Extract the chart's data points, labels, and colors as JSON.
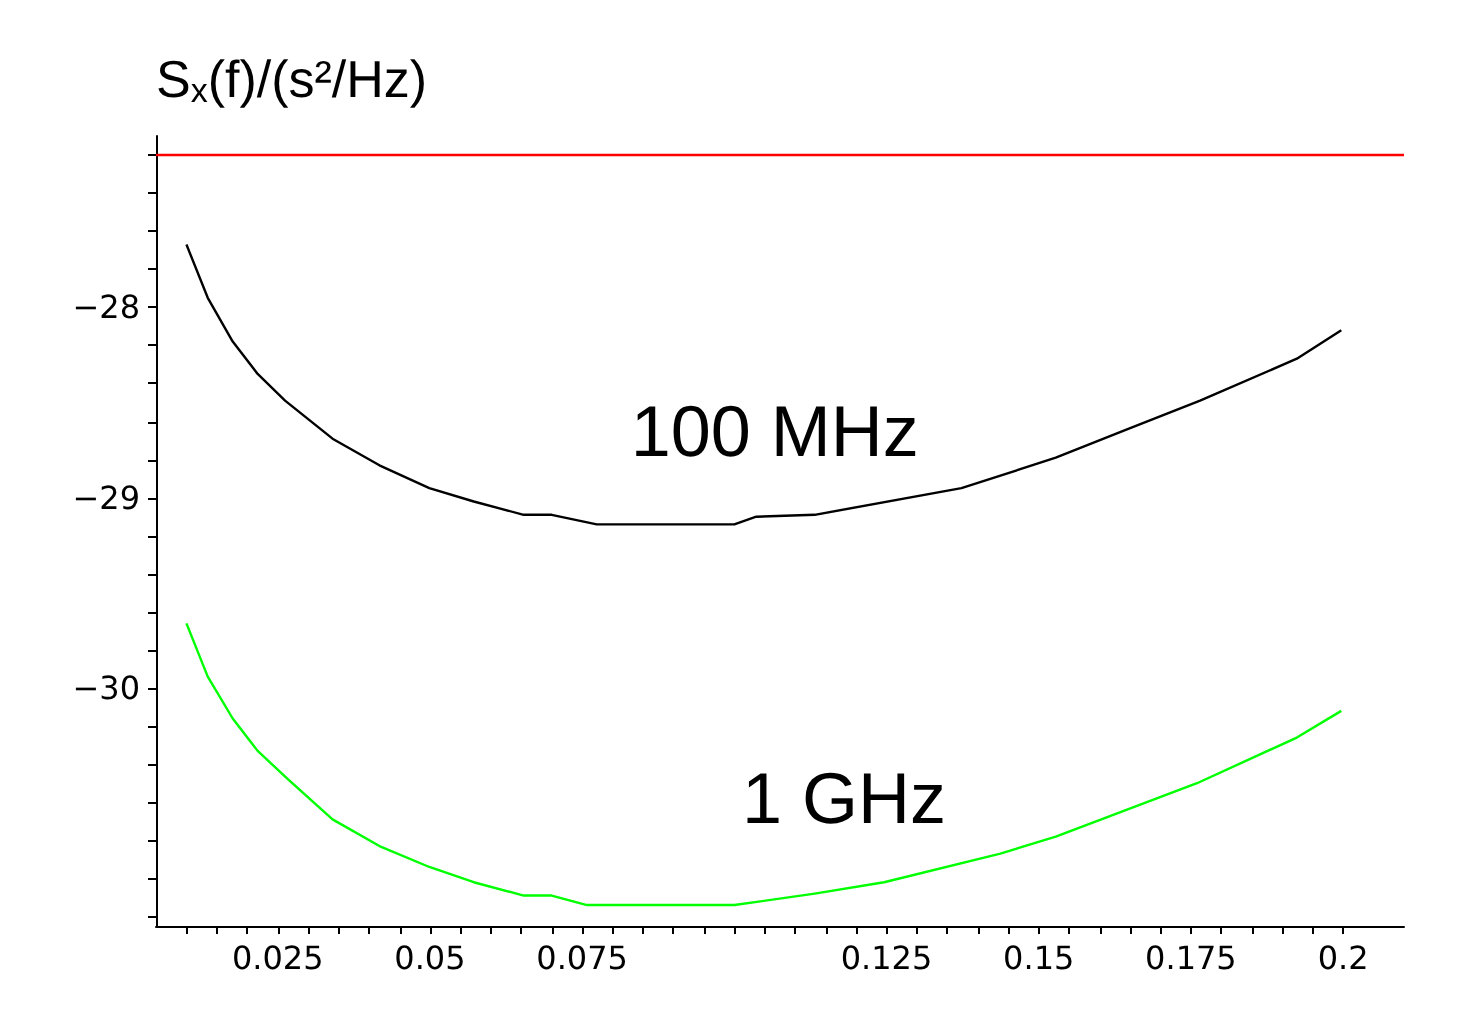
{
  "chart_data": {
    "type": "line",
    "ylabel": "S$_{x}$(f)/(s²/Hz)",
    "xlim": [
      0.005,
      0.21
    ],
    "ylim": [
      -31.25,
      -27.1
    ],
    "xticks": [
      {
        "value": 0.01,
        "label": null
      },
      {
        "value": 0.015,
        "label": null
      },
      {
        "value": 0.02,
        "label": null
      },
      0.025,
      {
        "value": 0.03,
        "label": null
      },
      {
        "value": 0.035,
        "label": null
      },
      {
        "value": 0.04,
        "label": null
      },
      {
        "value": 0.045,
        "label": null
      },
      0.05,
      {
        "value": 0.055,
        "label": null
      },
      {
        "value": 0.06,
        "label": null
      },
      {
        "value": 0.065,
        "label": null
      },
      {
        "value": 0.07,
        "label": null
      },
      0.075,
      {
        "value": 0.08,
        "label": null
      },
      {
        "value": 0.085,
        "label": null
      },
      {
        "value": 0.09,
        "label": null
      },
      {
        "value": 0.095,
        "label": null
      },
      {
        "value": 0.1,
        "label": null
      },
      {
        "value": 0.105,
        "label": null
      },
      {
        "value": 0.11,
        "label": null
      },
      {
        "value": 0.115,
        "label": null
      },
      {
        "value": 0.12,
        "label": null
      },
      0.125,
      {
        "value": 0.13,
        "label": null
      },
      {
        "value": 0.135,
        "label": null
      },
      {
        "value": 0.14,
        "label": null
      },
      {
        "value": 0.145,
        "label": null
      },
      0.15,
      {
        "value": 0.155,
        "label": null
      },
      {
        "value": 0.16,
        "label": null
      },
      {
        "value": 0.165,
        "label": null
      },
      {
        "value": 0.17,
        "label": null
      },
      0.175,
      {
        "value": 0.18,
        "label": null
      },
      {
        "value": 0.185,
        "label": null
      },
      {
        "value": 0.19,
        "label": null
      },
      {
        "value": 0.195,
        "label": null
      },
      0.2
    ],
    "yticks": [
      {
        "value": -31.2,
        "label": null
      },
      {
        "value": -31,
        "label": null
      },
      {
        "value": -30.8,
        "label": null
      },
      {
        "value": -30.6,
        "label": null
      },
      {
        "value": -30.4,
        "label": null
      },
      {
        "value": -30.2,
        "label": null
      },
      -30,
      {
        "value": -29.8,
        "label": null
      },
      {
        "value": -29.6,
        "label": null
      },
      {
        "value": -29.4,
        "label": null
      },
      {
        "value": -29.2,
        "label": null
      },
      -29,
      {
        "value": -28.8,
        "label": null
      },
      {
        "value": -28.6,
        "label": null
      },
      {
        "value": -28.4,
        "label": null
      },
      {
        "value": -28.2,
        "label": null
      },
      -28,
      {
        "value": -27.8,
        "label": null
      },
      {
        "value": -27.6,
        "label": null
      },
      {
        "value": -27.4,
        "label": null
      },
      {
        "value": -27.2,
        "label": null
      }
    ],
    "grid": false,
    "marker": "none",
    "line_style": "solid",
    "series": [
      {
        "name": "100 MHz",
        "color": "#000000",
        "x": [
          0.01,
          0.0135,
          0.0176,
          0.0217,
          0.0262,
          0.034,
          0.0417,
          0.0499,
          0.0572,
          0.0654,
          0.07,
          0.0774,
          0.1,
          0.1036,
          0.1132,
          0.1373,
          0.1528,
          0.1646,
          0.1765,
          0.1924,
          0.1997
        ],
        "values": [
          -27.67,
          -27.95,
          -28.18,
          -28.35,
          -28.49,
          -28.69,
          -28.83,
          -28.95,
          -29.02,
          -29.09,
          -29.09,
          -29.14,
          -29.14,
          -29.1,
          -29.09,
          -28.95,
          -28.79,
          -28.64,
          -28.49,
          -28.27,
          -28.12
        ]
      },
      {
        "name": "1 GHz",
        "color": "#00ff00",
        "x": [
          0.01,
          0.0135,
          0.0176,
          0.0217,
          0.0267,
          0.034,
          0.0417,
          0.0499,
          0.0572,
          0.0654,
          0.07,
          0.0758,
          0.1,
          0.1132,
          0.1246,
          0.1437,
          0.1528,
          0.176,
          0.1924,
          0.1997
        ],
        "values": [
          -29.66,
          -29.94,
          -30.16,
          -30.33,
          -30.48,
          -30.69,
          -30.83,
          -30.94,
          -31.02,
          -31.09,
          -31.09,
          -31.14,
          -31.14,
          -31.08,
          -31.02,
          -30.87,
          -30.78,
          -30.5,
          -30.26,
          -30.12
        ]
      }
    ],
    "ref_lines": [
      {
        "axis": "y",
        "value": -27.2,
        "color": "#ff0000"
      }
    ]
  }
}
